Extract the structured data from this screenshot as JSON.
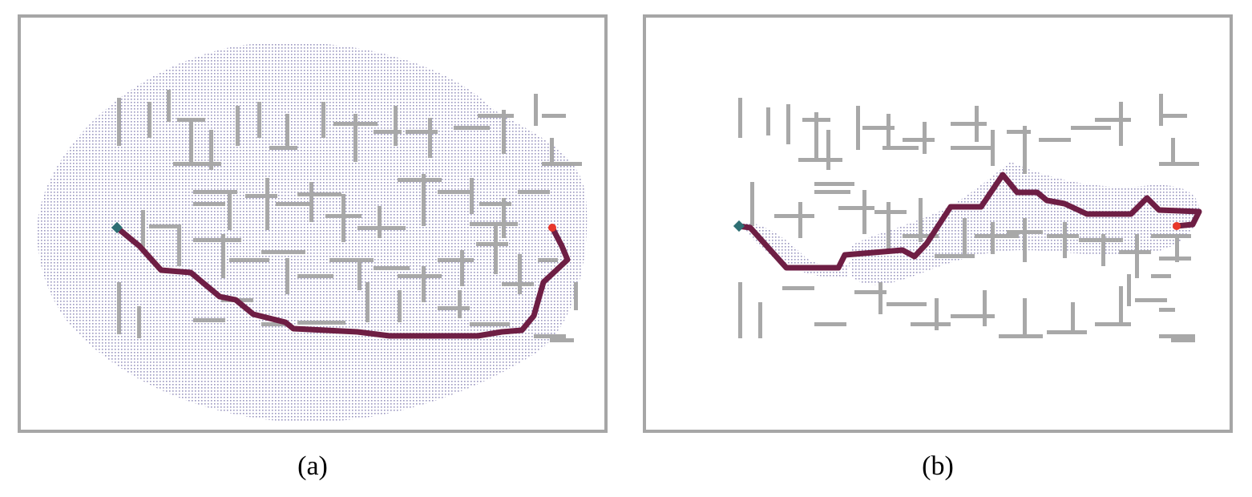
{
  "figure": {
    "panels": [
      {
        "id": "a",
        "caption": "(a)",
        "colors": {
          "frame": "#a6a6a6",
          "obstacle": "#a8a8a8",
          "explored": "#9a96bf",
          "path": "#6e1e44",
          "start": "#2e6f73",
          "goal": "#e8372a"
        },
        "legend": []
      },
      {
        "id": "b",
        "caption": "(b)",
        "colors": {
          "frame": "#a6a6a6",
          "obstacle": "#a8a8a8",
          "explored": "#9a96bf",
          "path": "#6e1e44",
          "start": "#2e6f73",
          "goal": "#e8372a"
        },
        "legend": []
      }
    ]
  }
}
